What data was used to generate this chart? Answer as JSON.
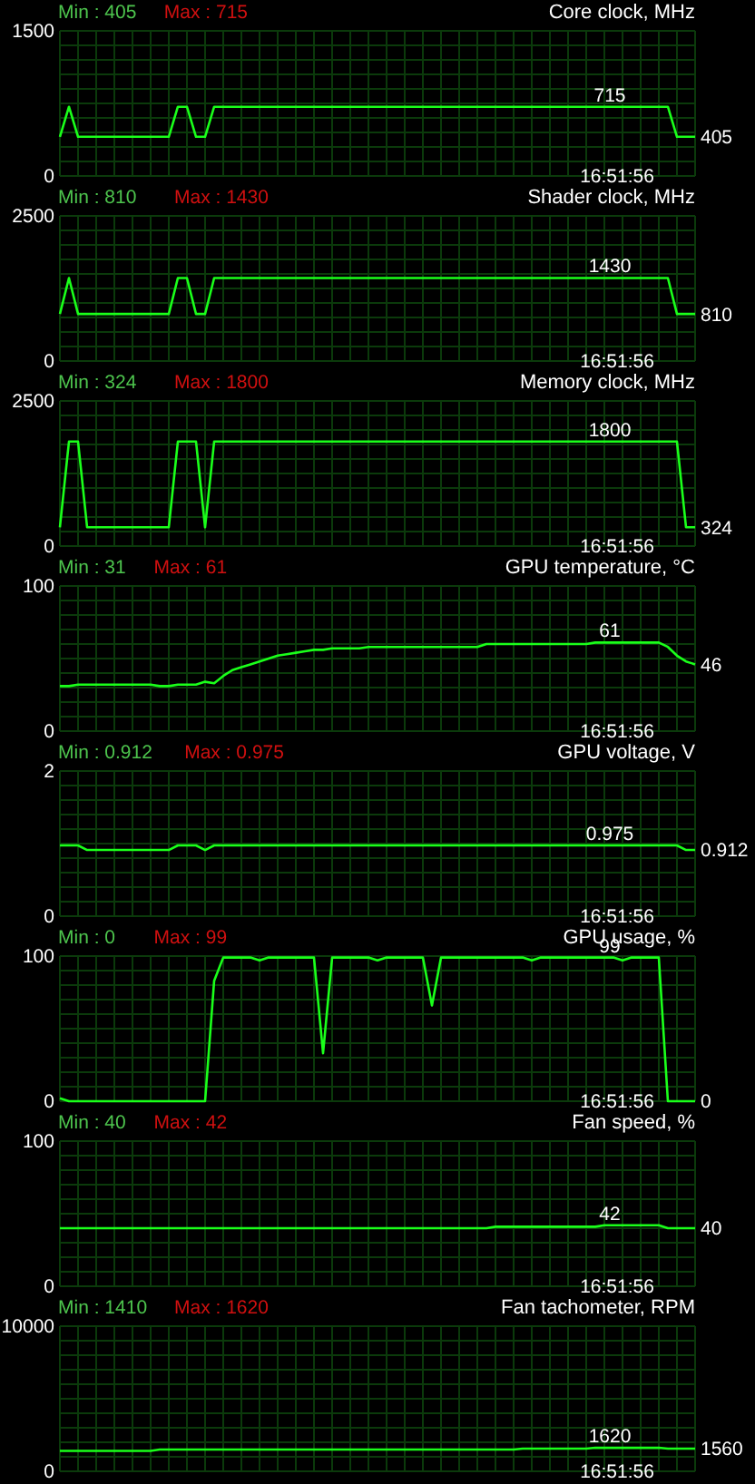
{
  "chart_data": [
    {
      "type": "line",
      "title": "Core clock, MHz",
      "categories": [
        null,
        null,
        null,
        null,
        null,
        null,
        null,
        null,
        null,
        null,
        null,
        null,
        null,
        null,
        null,
        null,
        null,
        null,
        null,
        null,
        null,
        null,
        null,
        null,
        null,
        null,
        null,
        null,
        null,
        null,
        null,
        null,
        null,
        null,
        null,
        null,
        null,
        null,
        null,
        null,
        null,
        null,
        null,
        null,
        null,
        null,
        null,
        null,
        null,
        null,
        null,
        null,
        null,
        null,
        null,
        null,
        null,
        null,
        null,
        null,
        null,
        null,
        null,
        null,
        null,
        null,
        null,
        null,
        null,
        null,
        null
      ],
      "series": [
        {
          "color": "#1aff1a",
          "values": [
            405,
            715,
            405,
            405,
            405,
            405,
            405,
            405,
            405,
            405,
            405,
            405,
            405,
            715,
            715,
            405,
            405,
            715,
            715,
            715,
            715,
            715,
            715,
            715,
            715,
            715,
            715,
            715,
            715,
            715,
            715,
            715,
            715,
            715,
            715,
            715,
            715,
            715,
            715,
            715,
            715,
            715,
            715,
            715,
            715,
            715,
            715,
            715,
            715,
            715,
            715,
            715,
            715,
            715,
            715,
            715,
            715,
            715,
            715,
            715,
            715,
            715,
            715,
            715,
            715,
            715,
            715,
            715,
            405,
            405,
            405
          ]
        }
      ],
      "ylim": [
        0,
        1500
      ],
      "yticks": [
        0,
        1500
      ],
      "grid": true,
      "tick_labels": "y",
      "annotations": [
        "Min : 405",
        "Max : 715",
        "16:51:56",
        "405",
        {
          "text": "715",
          "y": 715
        }
      ]
    },
    {
      "type": "line",
      "title": "Shader clock, MHz",
      "categories": [
        null,
        null,
        null,
        null,
        null,
        null,
        null,
        null,
        null,
        null,
        null,
        null,
        null,
        null,
        null,
        null,
        null,
        null,
        null,
        null,
        null,
        null,
        null,
        null,
        null,
        null,
        null,
        null,
        null,
        null,
        null,
        null,
        null,
        null,
        null,
        null,
        null,
        null,
        null,
        null,
        null,
        null,
        null,
        null,
        null,
        null,
        null,
        null,
        null,
        null,
        null,
        null,
        null,
        null,
        null,
        null,
        null,
        null,
        null,
        null,
        null,
        null,
        null,
        null,
        null,
        null,
        null,
        null,
        null,
        null,
        null
      ],
      "series": [
        {
          "color": "#1aff1a",
          "values": [
            810,
            1430,
            810,
            810,
            810,
            810,
            810,
            810,
            810,
            810,
            810,
            810,
            810,
            1430,
            1430,
            810,
            810,
            1430,
            1430,
            1430,
            1430,
            1430,
            1430,
            1430,
            1430,
            1430,
            1430,
            1430,
            1430,
            1430,
            1430,
            1430,
            1430,
            1430,
            1430,
            1430,
            1430,
            1430,
            1430,
            1430,
            1430,
            1430,
            1430,
            1430,
            1430,
            1430,
            1430,
            1430,
            1430,
            1430,
            1430,
            1430,
            1430,
            1430,
            1430,
            1430,
            1430,
            1430,
            1430,
            1430,
            1430,
            1430,
            1430,
            1430,
            1430,
            1430,
            1430,
            1430,
            810,
            810,
            810
          ]
        }
      ],
      "ylim": [
        0,
        2500
      ],
      "yticks": [
        0,
        2500
      ],
      "grid": true,
      "tick_labels": "y",
      "annotations": [
        "Min : 810",
        "Max : 1430",
        "16:51:56",
        "810",
        {
          "text": "1430",
          "y": 1430
        }
      ]
    },
    {
      "type": "line",
      "title": "Memory clock, MHz",
      "categories": [
        null,
        null,
        null,
        null,
        null,
        null,
        null,
        null,
        null,
        null,
        null,
        null,
        null,
        null,
        null,
        null,
        null,
        null,
        null,
        null,
        null,
        null,
        null,
        null,
        null,
        null,
        null,
        null,
        null,
        null,
        null,
        null,
        null,
        null,
        null,
        null,
        null,
        null,
        null,
        null,
        null,
        null,
        null,
        null,
        null,
        null,
        null,
        null,
        null,
        null,
        null,
        null,
        null,
        null,
        null,
        null,
        null,
        null,
        null,
        null,
        null,
        null,
        null,
        null,
        null,
        null,
        null,
        null,
        null,
        null,
        null
      ],
      "series": [
        {
          "color": "#1aff1a",
          "values": [
            324,
            1800,
            1800,
            324,
            324,
            324,
            324,
            324,
            324,
            324,
            324,
            324,
            324,
            1800,
            1800,
            1800,
            324,
            1800,
            1800,
            1800,
            1800,
            1800,
            1800,
            1800,
            1800,
            1800,
            1800,
            1800,
            1800,
            1800,
            1800,
            1800,
            1800,
            1800,
            1800,
            1800,
            1800,
            1800,
            1800,
            1800,
            1800,
            1800,
            1800,
            1800,
            1800,
            1800,
            1800,
            1800,
            1800,
            1800,
            1800,
            1800,
            1800,
            1800,
            1800,
            1800,
            1800,
            1800,
            1800,
            1800,
            1800,
            1800,
            1800,
            1800,
            1800,
            1800,
            1800,
            1800,
            1800,
            324,
            324
          ]
        }
      ],
      "ylim": [
        0,
        2500
      ],
      "yticks": [
        0,
        2500
      ],
      "grid": true,
      "tick_labels": "y",
      "annotations": [
        "Min : 324",
        "Max : 1800",
        "16:51:56",
        "324",
        {
          "text": "1800",
          "y": 1800
        }
      ]
    },
    {
      "type": "line",
      "title": "GPU temperature, °C",
      "categories": [
        null,
        null,
        null,
        null,
        null,
        null,
        null,
        null,
        null,
        null,
        null,
        null,
        null,
        null,
        null,
        null,
        null,
        null,
        null,
        null,
        null,
        null,
        null,
        null,
        null,
        null,
        null,
        null,
        null,
        null,
        null,
        null,
        null,
        null,
        null,
        null,
        null,
        null,
        null,
        null,
        null,
        null,
        null,
        null,
        null,
        null,
        null,
        null,
        null,
        null,
        null,
        null,
        null,
        null,
        null,
        null,
        null,
        null,
        null,
        null,
        null,
        null,
        null,
        null,
        null,
        null,
        null,
        null,
        null,
        null,
        null
      ],
      "series": [
        {
          "color": "#1aff1a",
          "values": [
            31,
            31,
            32,
            32,
            32,
            32,
            32,
            32,
            32,
            32,
            32,
            31,
            31,
            32,
            32,
            32,
            34,
            33,
            38,
            42,
            44,
            46,
            48,
            50,
            52,
            53,
            54,
            55,
            56,
            56,
            57,
            57,
            57,
            57,
            58,
            58,
            58,
            58,
            58,
            58,
            58,
            58,
            58,
            58,
            58,
            58,
            58,
            60,
            60,
            60,
            60,
            60,
            60,
            60,
            60,
            60,
            60,
            60,
            60,
            61,
            61,
            61,
            61,
            61,
            61,
            61,
            61,
            58,
            52,
            48,
            46
          ]
        }
      ],
      "ylim": [
        0,
        100
      ],
      "yticks": [
        0,
        100
      ],
      "grid": true,
      "tick_labels": "y",
      "annotations": [
        "Min : 31",
        "Max : 61",
        "16:51:56",
        "46",
        {
          "text": "61",
          "y": 61
        }
      ]
    },
    {
      "type": "line",
      "title": "GPU voltage, V",
      "categories": [
        null,
        null,
        null,
        null,
        null,
        null,
        null,
        null,
        null,
        null,
        null,
        null,
        null,
        null,
        null,
        null,
        null,
        null,
        null,
        null,
        null,
        null,
        null,
        null,
        null,
        null,
        null,
        null,
        null,
        null,
        null,
        null,
        null,
        null,
        null,
        null,
        null,
        null,
        null,
        null,
        null,
        null,
        null,
        null,
        null,
        null,
        null,
        null,
        null,
        null,
        null,
        null,
        null,
        null,
        null,
        null,
        null,
        null,
        null,
        null,
        null,
        null,
        null,
        null,
        null,
        null,
        null,
        null,
        null,
        null,
        null
      ],
      "series": [
        {
          "color": "#1aff1a",
          "values": [
            0.975,
            0.975,
            0.975,
            0.912,
            0.912,
            0.912,
            0.912,
            0.912,
            0.912,
            0.912,
            0.912,
            0.912,
            0.912,
            0.975,
            0.975,
            0.975,
            0.912,
            0.975,
            0.975,
            0.975,
            0.975,
            0.975,
            0.975,
            0.975,
            0.975,
            0.975,
            0.975,
            0.975,
            0.975,
            0.975,
            0.975,
            0.975,
            0.975,
            0.975,
            0.975,
            0.975,
            0.975,
            0.975,
            0.975,
            0.975,
            0.975,
            0.975,
            0.975,
            0.975,
            0.975,
            0.975,
            0.975,
            0.975,
            0.975,
            0.975,
            0.975,
            0.975,
            0.975,
            0.975,
            0.975,
            0.975,
            0.975,
            0.975,
            0.975,
            0.975,
            0.975,
            0.975,
            0.975,
            0.975,
            0.975,
            0.975,
            0.975,
            0.975,
            0.975,
            0.912,
            0.912
          ]
        }
      ],
      "ylim": [
        0,
        2
      ],
      "yticks": [
        0,
        2
      ],
      "grid": true,
      "tick_labels": "y",
      "annotations": [
        "Min : 0.912",
        "Max : 0.975",
        "16:51:56",
        "0.912",
        {
          "text": "0.975",
          "y": 0.975
        }
      ]
    },
    {
      "type": "line",
      "title": "GPU usage, %",
      "categories": [
        null,
        null,
        null,
        null,
        null,
        null,
        null,
        null,
        null,
        null,
        null,
        null,
        null,
        null,
        null,
        null,
        null,
        null,
        null,
        null,
        null,
        null,
        null,
        null,
        null,
        null,
        null,
        null,
        null,
        null,
        null,
        null,
        null,
        null,
        null,
        null,
        null,
        null,
        null,
        null,
        null,
        null,
        null,
        null,
        null,
        null,
        null,
        null,
        null,
        null,
        null,
        null,
        null,
        null,
        null,
        null,
        null,
        null,
        null,
        null,
        null,
        null,
        null,
        null,
        null,
        null,
        null,
        null,
        null,
        null,
        null
      ],
      "series": [
        {
          "color": "#1aff1a",
          "values": [
            2,
            0,
            0,
            0,
            0,
            0,
            0,
            0,
            0,
            0,
            0,
            0,
            0,
            0,
            0,
            0,
            0,
            83,
            99,
            99,
            99,
            99,
            97,
            99,
            99,
            99,
            99,
            99,
            99,
            33,
            99,
            99,
            99,
            99,
            99,
            97,
            99,
            99,
            99,
            99,
            99,
            66,
            99,
            99,
            99,
            99,
            99,
            99,
            99,
            99,
            99,
            99,
            97,
            99,
            99,
            99,
            99,
            99,
            99,
            99,
            99,
            99,
            97,
            99,
            99,
            99,
            99,
            0,
            0,
            0,
            0
          ]
        }
      ],
      "ylim": [
        0,
        100
      ],
      "yticks": [
        0,
        100
      ],
      "grid": true,
      "tick_labels": "y",
      "annotations": [
        "Min : 0",
        "Max : 99",
        "16:51:56",
        "0",
        {
          "text": "99",
          "y": 99
        }
      ]
    },
    {
      "type": "line",
      "title": "Fan speed, %",
      "categories": [
        null,
        null,
        null,
        null,
        null,
        null,
        null,
        null,
        null,
        null,
        null,
        null,
        null,
        null,
        null,
        null,
        null,
        null,
        null,
        null,
        null,
        null,
        null,
        null,
        null,
        null,
        null,
        null,
        null,
        null,
        null,
        null,
        null,
        null,
        null,
        null,
        null,
        null,
        null,
        null,
        null,
        null,
        null,
        null,
        null,
        null,
        null,
        null,
        null,
        null,
        null,
        null,
        null,
        null,
        null,
        null,
        null,
        null,
        null,
        null,
        null,
        null,
        null,
        null,
        null,
        null,
        null,
        null,
        null,
        null,
        null
      ],
      "series": [
        {
          "color": "#1aff1a",
          "values": [
            40,
            40,
            40,
            40,
            40,
            40,
            40,
            40,
            40,
            40,
            40,
            40,
            40,
            40,
            40,
            40,
            40,
            40,
            40,
            40,
            40,
            40,
            40,
            40,
            40,
            40,
            40,
            40,
            40,
            40,
            40,
            40,
            40,
            40,
            40,
            40,
            40,
            40,
            40,
            40,
            40,
            40,
            40,
            40,
            40,
            40,
            40,
            40,
            41,
            41,
            41,
            41,
            41,
            41,
            41,
            41,
            41,
            41,
            41,
            41,
            42,
            42,
            42,
            42,
            42,
            42,
            42,
            40,
            40,
            40,
            40
          ]
        }
      ],
      "ylim": [
        0,
        100
      ],
      "yticks": [
        0,
        100
      ],
      "grid": true,
      "tick_labels": "y",
      "annotations": [
        "Min : 40",
        "Max : 42",
        "16:51:56",
        "40",
        {
          "text": "42",
          "y": 42
        }
      ]
    },
    {
      "type": "line",
      "title": "Fan tachometer, RPM",
      "categories": [
        null,
        null,
        null,
        null,
        null,
        null,
        null,
        null,
        null,
        null,
        null,
        null,
        null,
        null,
        null,
        null,
        null,
        null,
        null,
        null,
        null,
        null,
        null,
        null,
        null,
        null,
        null,
        null,
        null,
        null,
        null,
        null,
        null,
        null,
        null,
        null,
        null,
        null,
        null,
        null,
        null,
        null,
        null,
        null,
        null,
        null,
        null,
        null,
        null,
        null,
        null,
        null,
        null,
        null,
        null,
        null,
        null,
        null,
        null,
        null,
        null,
        null,
        null,
        null,
        null,
        null,
        null,
        null,
        null,
        null,
        null
      ],
      "series": [
        {
          "color": "#1aff1a",
          "values": [
            1410,
            1410,
            1410,
            1410,
            1410,
            1410,
            1410,
            1410,
            1410,
            1410,
            1410,
            1500,
            1500,
            1500,
            1500,
            1500,
            1500,
            1500,
            1500,
            1500,
            1500,
            1500,
            1500,
            1500,
            1500,
            1500,
            1500,
            1500,
            1500,
            1500,
            1500,
            1500,
            1500,
            1500,
            1500,
            1500,
            1500,
            1500,
            1500,
            1500,
            1500,
            1500,
            1500,
            1500,
            1500,
            1500,
            1500,
            1500,
            1500,
            1500,
            1500,
            1560,
            1560,
            1560,
            1560,
            1560,
            1560,
            1560,
            1560,
            1620,
            1620,
            1620,
            1620,
            1620,
            1620,
            1620,
            1620,
            1560,
            1560,
            1560,
            1560
          ]
        }
      ],
      "ylim": [
        0,
        10000
      ],
      "yticks": [
        0,
        10000
      ],
      "grid": true,
      "tick_labels": "y",
      "annotations": [
        "Min : 1410",
        "Max : 1620",
        "16:51:56",
        "1560",
        {
          "text": "1620",
          "y": 1620
        }
      ]
    }
  ]
}
